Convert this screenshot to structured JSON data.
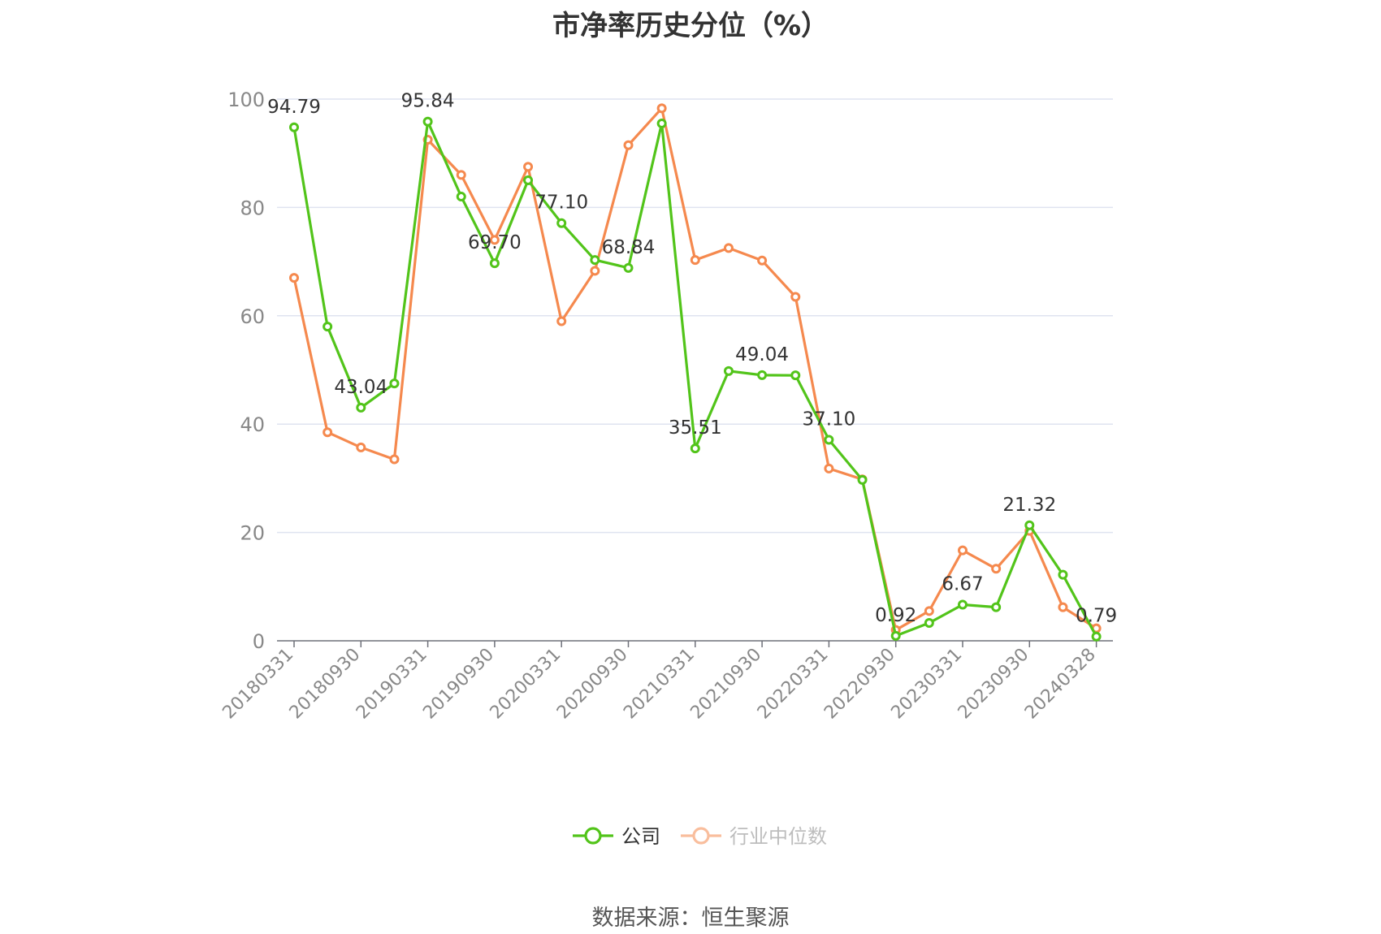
{
  "title": "市净率历史分位（%）",
  "source": "数据来源：恒生聚源",
  "chart_data": {
    "type": "line",
    "title": "市净率历史分位（%）",
    "ylim": [
      0,
      100
    ],
    "y_ticks": [
      "0",
      "20",
      "40",
      "60",
      "80",
      "100"
    ],
    "x_tick_labels": [
      "20180331",
      "20180930",
      "20190331",
      "20190930",
      "20200331",
      "20200930",
      "20210331",
      "20210930",
      "20220331",
      "20220930",
      "20230331",
      "20230930",
      "20240328"
    ],
    "x": [
      "20180331",
      "20180630",
      "20180930",
      "20181231",
      "20190331",
      "20190630",
      "20190930",
      "20191231",
      "20200331",
      "20200630",
      "20200930",
      "20201231",
      "20210331",
      "20210630",
      "20210930",
      "20211231",
      "20220331",
      "20220630",
      "20220930",
      "20221231",
      "20230331",
      "20230630",
      "20230930",
      "20231231",
      "20240328"
    ],
    "grid": true,
    "legend_position": "bottom",
    "series": [
      {
        "name": "公司",
        "color": "#52c41a",
        "values": [
          94.79,
          58.0,
          43.04,
          47.5,
          95.84,
          82.0,
          69.7,
          85.0,
          77.1,
          70.3,
          68.84,
          95.5,
          35.51,
          49.8,
          49.04,
          49.0,
          37.1,
          29.7,
          0.92,
          3.3,
          6.67,
          6.2,
          21.32,
          12.2,
          0.79
        ]
      },
      {
        "name": "行业中位数",
        "color": "#f5894e",
        "values": [
          67.0,
          38.5,
          35.7,
          33.5,
          92.5,
          86.0,
          74.0,
          87.5,
          59.0,
          68.3,
          91.5,
          98.3,
          70.3,
          72.5,
          70.2,
          63.5,
          31.8,
          29.8,
          2.0,
          5.5,
          16.7,
          13.3,
          20.3,
          6.2,
          2.3
        ]
      }
    ],
    "annotations": [
      {
        "series": 0,
        "index": 0,
        "label": "94.79"
      },
      {
        "series": 0,
        "index": 2,
        "label": "43.04"
      },
      {
        "series": 0,
        "index": 4,
        "label": "95.84"
      },
      {
        "series": 0,
        "index": 6,
        "label": "69.70"
      },
      {
        "series": 0,
        "index": 8,
        "label": "77.10"
      },
      {
        "series": 0,
        "index": 10,
        "label": "68.84"
      },
      {
        "series": 0,
        "index": 12,
        "label": "35.51"
      },
      {
        "series": 0,
        "index": 14,
        "label": "49.04"
      },
      {
        "series": 0,
        "index": 16,
        "label": "37.10"
      },
      {
        "series": 0,
        "index": 18,
        "label": "0.92"
      },
      {
        "series": 0,
        "index": 20,
        "label": "6.67"
      },
      {
        "series": 0,
        "index": 22,
        "label": "21.32"
      },
      {
        "series": 0,
        "index": 24,
        "label": "0.79"
      }
    ]
  }
}
